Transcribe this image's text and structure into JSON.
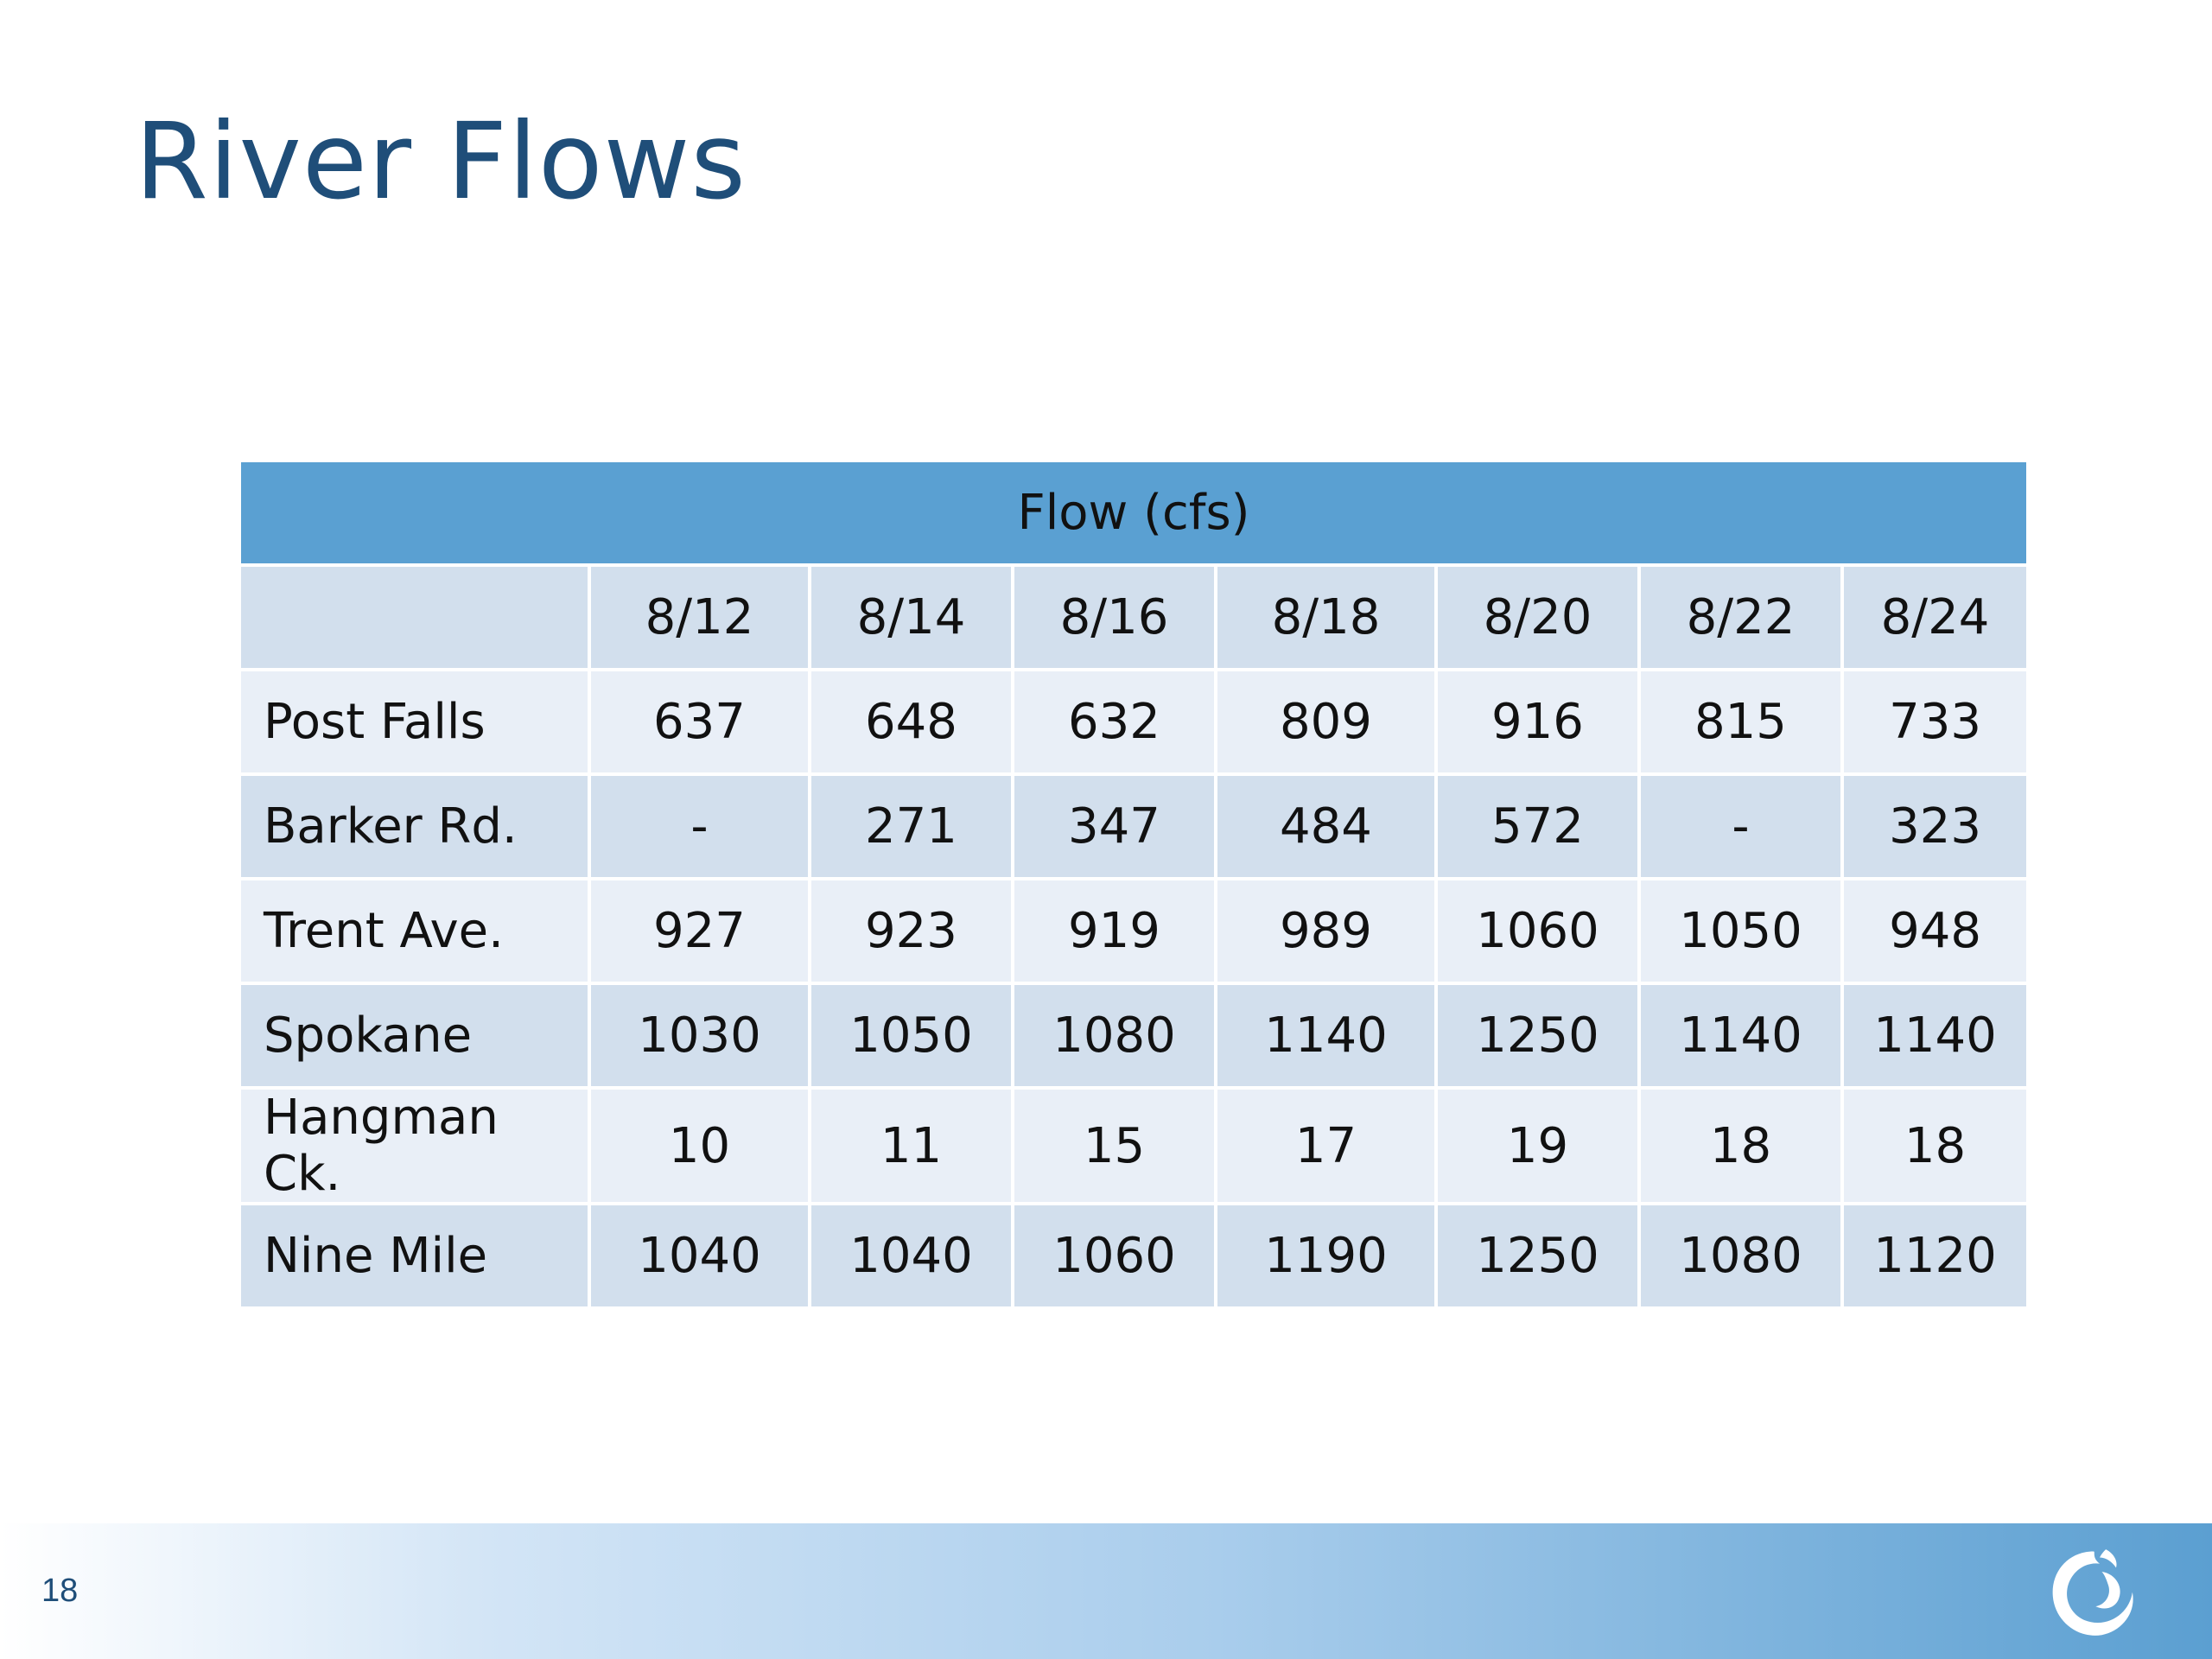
{
  "slide": {
    "title": "River Flows",
    "page_number": "18"
  },
  "table": {
    "caption": "Flow (cfs)",
    "columns": [
      "8/12",
      "8/14",
      "8/16",
      "8/18",
      "8/20",
      "8/22",
      "8/24"
    ],
    "rows": [
      {
        "label": "Post Falls",
        "values": [
          "637",
          "648",
          "632",
          "809",
          "916",
          "815",
          "733"
        ]
      },
      {
        "label": "Barker Rd.",
        "values": [
          "-",
          "271",
          "347",
          "484",
          "572",
          "-",
          "323"
        ]
      },
      {
        "label": "Trent Ave.",
        "values": [
          "927",
          "923",
          "919",
          "989",
          "1060",
          "1050",
          "948"
        ]
      },
      {
        "label": "Spokane",
        "values": [
          "1030",
          "1050",
          "1080",
          "1140",
          "1250",
          "1140",
          "1140"
        ]
      },
      {
        "label": "Hangman Ck.",
        "values": [
          "10",
          "11",
          "15",
          "17",
          "19",
          "18",
          "18"
        ]
      },
      {
        "label": "Nine Mile",
        "values": [
          "1040",
          "1040",
          "1060",
          "1190",
          "1250",
          "1080",
          "1120"
        ]
      }
    ]
  },
  "colors": {
    "title": "#1f4e79",
    "caption_bg": "#5aa0d2",
    "row_dark": "#d2dfed",
    "row_light": "#e9eff7"
  },
  "icons": {
    "logo": "swirl-logo-icon"
  }
}
